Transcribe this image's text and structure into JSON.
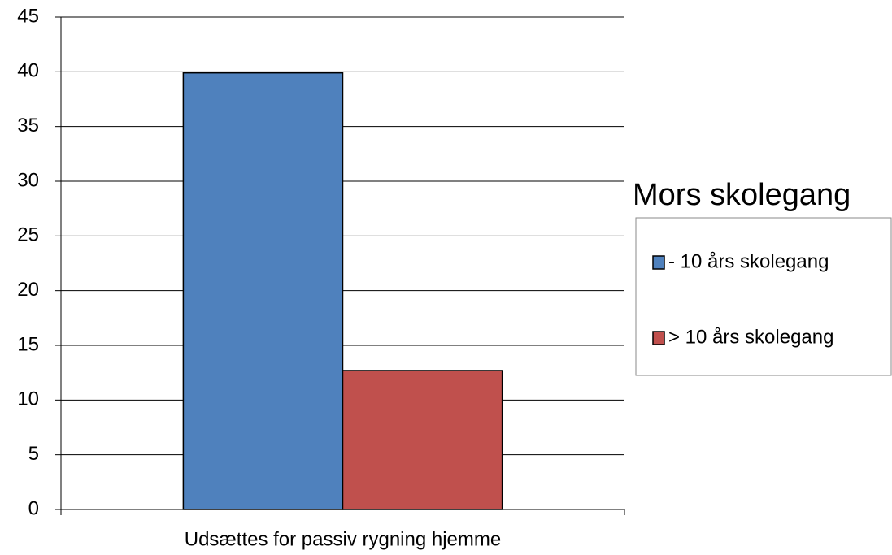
{
  "chart_data": {
    "type": "bar",
    "categories": [
      "Udsættes for passiv rygning hjemme"
    ],
    "legend_title": "Mors skolegang",
    "series": [
      {
        "name": "- 10 års skolegang",
        "color": "#4f81bd",
        "values": [
          39.9
        ]
      },
      {
        "name": "> 10 års skolegang",
        "color": "#c0504d",
        "values": [
          12.7
        ]
      }
    ],
    "ylim": [
      0,
      45
    ],
    "yticks": [
      0,
      5,
      10,
      15,
      20,
      25,
      30,
      35,
      40,
      45
    ],
    "grid": true,
    "legend": "right"
  }
}
